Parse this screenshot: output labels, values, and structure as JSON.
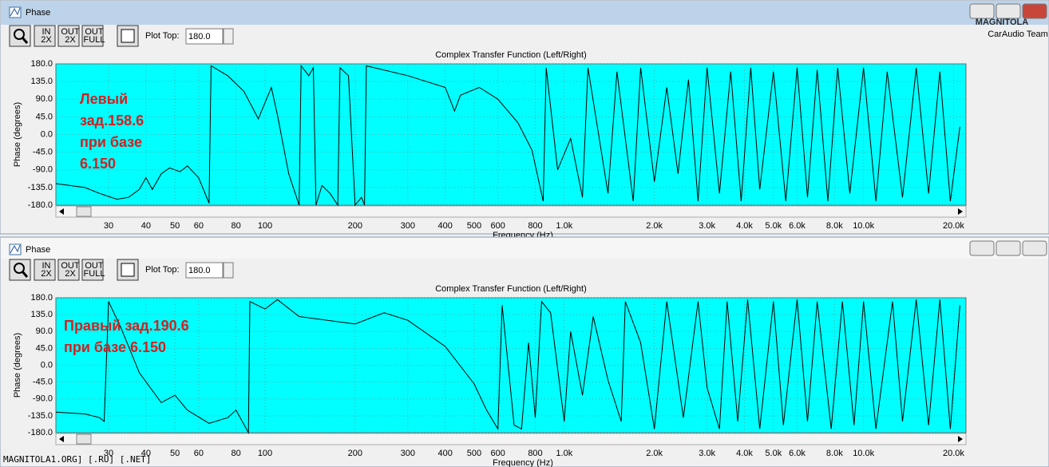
{
  "logo": {
    "name": "MAGNITOLA",
    "team": "CarAudio Team"
  },
  "watermark": "MAGNITOLA1.ORG] [.RU] [.NET]",
  "windows": [
    {
      "title": "Phase",
      "toolbar": [
        {
          "top": "IN",
          "bottom": "2X"
        },
        {
          "top": "OUT",
          "bottom": "2X"
        },
        {
          "top": "OUT",
          "bottom": "FULL"
        }
      ],
      "plot_top_label": "Plot Top:",
      "plot_top_value": "180.0",
      "chart_data": {
        "type": "line",
        "title": "Complex Transfer Function (Left/Right)",
        "y_label": "Phase (degrees)",
        "x_label": "Frequency (Hz)",
        "annotation": [
          "Левый",
          "зад.158.6",
          "при базе",
          "6.150"
        ],
        "x_log": true,
        "xlim": [
          20,
          22000
        ],
        "ylim": [
          -180,
          180
        ],
        "grid": true,
        "xticks": [
          30,
          40,
          50,
          60,
          80,
          100,
          200,
          300,
          400,
          500,
          600,
          800,
          {
            "value": 1000,
            "label": "1.0k"
          },
          {
            "value": 2000,
            "label": "2.0k"
          },
          {
            "value": 3000,
            "label": "3.0k"
          },
          {
            "value": 4000,
            "label": "4.0k"
          },
          {
            "value": 5000,
            "label": "5.0k"
          },
          {
            "value": 6000,
            "label": "6.0k"
          },
          {
            "value": 8000,
            "label": "8.0k"
          },
          {
            "value": 10000,
            "label": "10.0k"
          },
          {
            "value": 20000,
            "label": "20.0k"
          }
        ],
        "yticks": [
          {
            "value": 180,
            "label": "180.0"
          },
          {
            "value": 135,
            "label": "135.0"
          },
          {
            "value": 90,
            "label": "90.0"
          },
          {
            "value": 45,
            "label": "45.0"
          },
          {
            "value": 0,
            "label": "0.0"
          },
          {
            "value": -45,
            "label": "-45.0"
          },
          {
            "value": -90,
            "label": "-90.0"
          },
          {
            "value": -135,
            "label": "-135.0"
          },
          {
            "value": -180,
            "label": "-180.0"
          }
        ],
        "series": [
          {
            "color": "#000000",
            "x": [
              20,
              25,
              28,
              32,
              35,
              38,
              40,
              42,
              45,
              48,
              52,
              55,
              60,
              65,
              66,
              75,
              85,
              95,
              105,
              110,
              120,
              130,
              132,
              140,
              145,
              148,
              155,
              165,
              175,
              178,
              190,
              200,
              210,
              215,
              218,
              300,
              400,
              430,
              450,
              520,
              600,
              700,
              780,
              850,
              870,
              950,
              1050,
              1150,
              1200,
              1400,
              1500,
              1700,
              1800,
              2000,
              2200,
              2400,
              2600,
              2800,
              3000,
              3300,
              3600,
              3900,
              4200,
              4500,
              5000,
              5500,
              6000,
              6500,
              7000,
              7600,
              8200,
              9000,
              10000,
              11000,
              12000,
              13500,
              15000,
              16500,
              18000,
              19500,
              21000
            ],
            "values": [
              -125,
              -135,
              -150,
              -165,
              -160,
              -140,
              -110,
              -140,
              -100,
              -85,
              -95,
              -80,
              -110,
              -175,
              175,
              150,
              110,
              40,
              120,
              50,
              -100,
              -180,
              175,
              150,
              170,
              -180,
              -130,
              -150,
              -180,
              170,
              150,
              -180,
              -160,
              -180,
              175,
              150,
              120,
              60,
              100,
              120,
              90,
              30,
              -40,
              -170,
              170,
              -90,
              -10,
              -160,
              170,
              -150,
              160,
              -170,
              170,
              -120,
              120,
              -100,
              140,
              -170,
              170,
              -150,
              160,
              -170,
              170,
              -140,
              160,
              -170,
              170,
              -160,
              165,
              -170,
              170,
              -150,
              170,
              -170,
              160,
              -160,
              170,
              -150,
              160,
              -170,
              20
            ]
          }
        ]
      }
    },
    {
      "title": "Phase",
      "toolbar": [
        {
          "top": "IN",
          "bottom": "2X"
        },
        {
          "top": "OUT",
          "bottom": "2X"
        },
        {
          "top": "OUT",
          "bottom": "FULL"
        }
      ],
      "plot_top_label": "Plot Top:",
      "plot_top_value": "180.0",
      "chart_data": {
        "type": "line",
        "title": "Complex Transfer Function (Left/Right)",
        "y_label": "Phase (degrees)",
        "x_label": "Frequency (Hz)",
        "annotation": [
          "Правый зад.190.6",
          "при базе 6.150"
        ],
        "x_log": true,
        "xlim": [
          20,
          22000
        ],
        "ylim": [
          -180,
          180
        ],
        "grid": true,
        "xticks": [
          30,
          40,
          50,
          60,
          80,
          100,
          200,
          300,
          400,
          500,
          600,
          800,
          {
            "value": 1000,
            "label": "1.0k"
          },
          {
            "value": 2000,
            "label": "2.0k"
          },
          {
            "value": 3000,
            "label": "3.0k"
          },
          {
            "value": 4000,
            "label": "4.0k"
          },
          {
            "value": 5000,
            "label": "5.0k"
          },
          {
            "value": 6000,
            "label": "6.0k"
          },
          {
            "value": 8000,
            "label": "8.0k"
          },
          {
            "value": 10000,
            "label": "10.0k"
          },
          {
            "value": 20000,
            "label": "20.0k"
          }
        ],
        "yticks": [
          {
            "value": 180,
            "label": "180.0"
          },
          {
            "value": 135,
            "label": "135.0"
          },
          {
            "value": 90,
            "label": "90.0"
          },
          {
            "value": 45,
            "label": "45.0"
          },
          {
            "value": 0,
            "label": "0.0"
          },
          {
            "value": -45,
            "label": "-45.0"
          },
          {
            "value": -90,
            "label": "-90.0"
          },
          {
            "value": -135,
            "label": "-135.0"
          },
          {
            "value": -180,
            "label": "-180.0"
          }
        ],
        "series": [
          {
            "color": "#000000",
            "x": [
              20,
              25,
              28,
              29,
              30,
              33,
              38,
              45,
              50,
              55,
              65,
              75,
              80,
              88,
              89,
              100,
              110,
              130,
              200,
              250,
              300,
              400,
              500,
              550,
              600,
              620,
              680,
              720,
              760,
              800,
              840,
              900,
              1000,
              1050,
              1150,
              1250,
              1400,
              1550,
              1600,
              1800,
              2000,
              2200,
              2500,
              2800,
              3000,
              3300,
              3500,
              3800,
              4100,
              4500,
              5000,
              5400,
              6000,
              6500,
              7000,
              7800,
              8500,
              9300,
              10000,
              11000,
              12500,
              13500,
              15000,
              16500,
              18000,
              19500,
              21000
            ],
            "values": [
              -125,
              -130,
              -140,
              -150,
              170,
              100,
              -20,
              -100,
              -80,
              -120,
              -155,
              -140,
              -120,
              -180,
              170,
              150,
              175,
              130,
              110,
              140,
              120,
              50,
              -50,
              -120,
              -170,
              160,
              -160,
              -170,
              60,
              -140,
              170,
              140,
              -150,
              90,
              -80,
              130,
              -40,
              -150,
              170,
              60,
              -170,
              170,
              -140,
              170,
              -60,
              -170,
              170,
              -150,
              175,
              -170,
              170,
              -160,
              175,
              -150,
              170,
              -170,
              170,
              -160,
              170,
              -170,
              170,
              -150,
              175,
              -160,
              175,
              -170,
              160
            ]
          }
        ]
      }
    }
  ]
}
